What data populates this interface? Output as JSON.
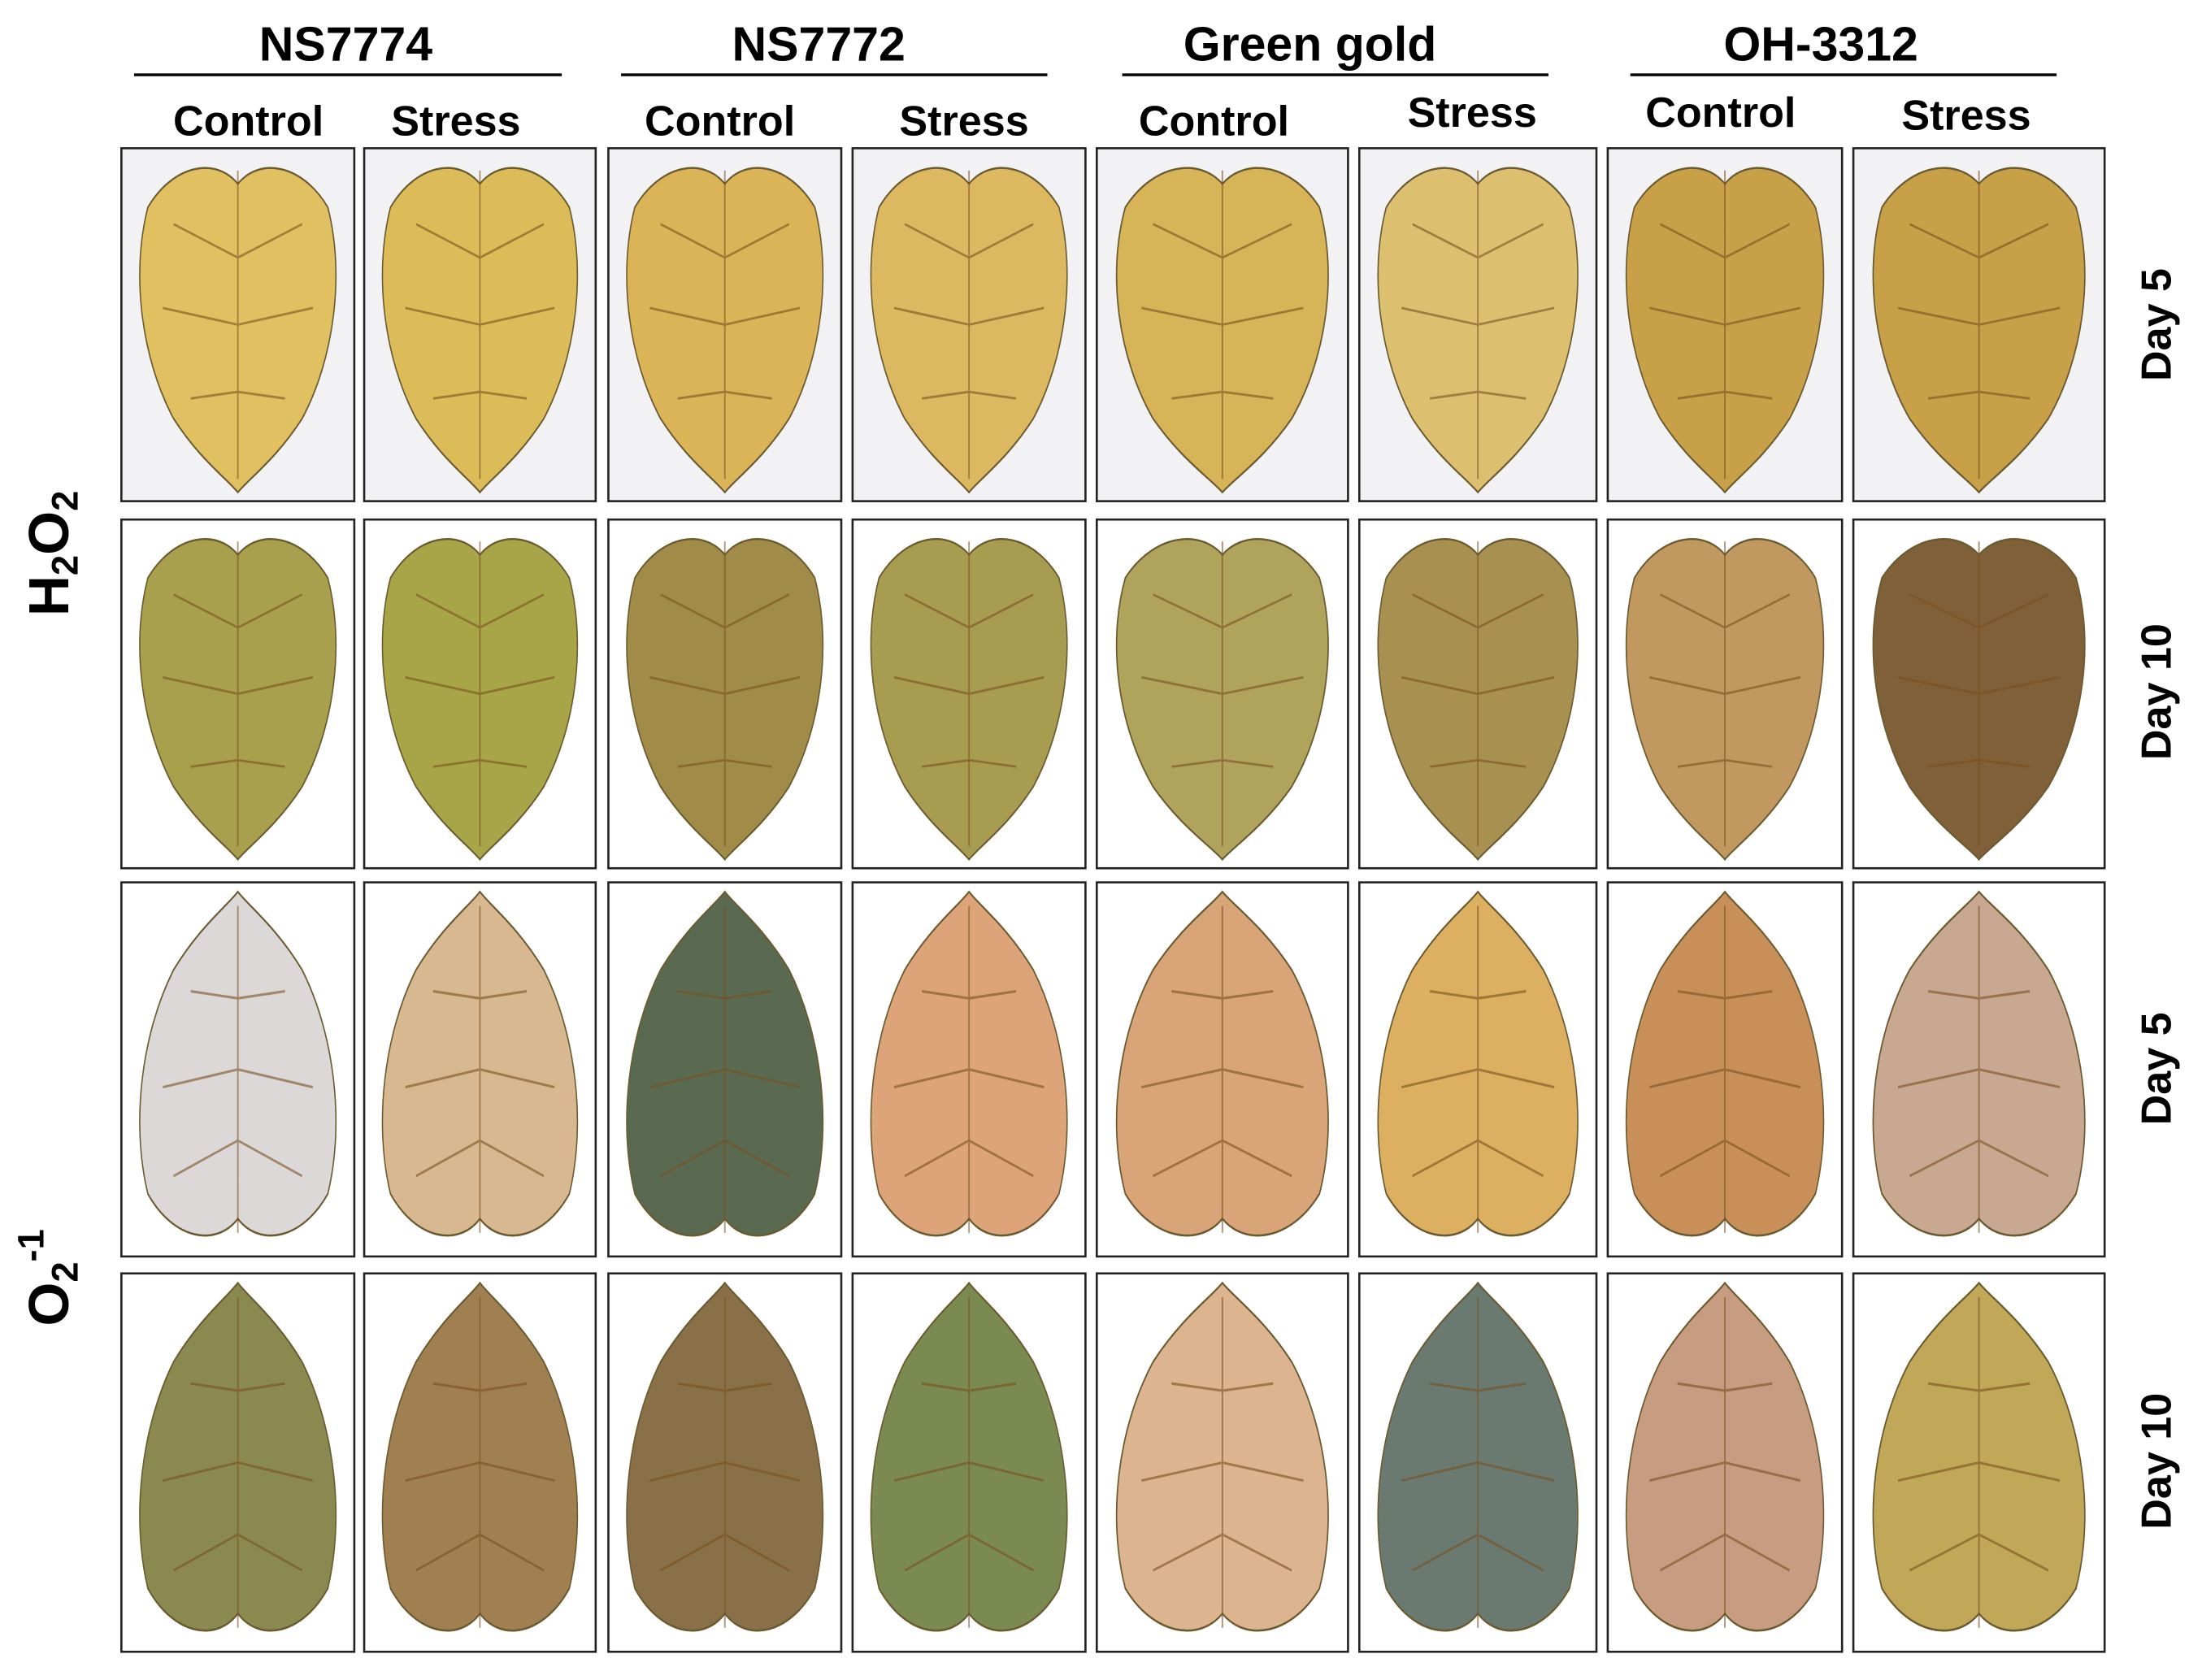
{
  "columns": [
    {
      "genotype": "NS7774",
      "conditions": [
        "Control",
        "Stress"
      ]
    },
    {
      "genotype": "NS7772",
      "conditions": [
        "Control",
        "Stress"
      ]
    },
    {
      "genotype": "Green gold",
      "conditions": [
        "Control",
        "Stress"
      ]
    },
    {
      "genotype": "OH-3312",
      "conditions": [
        "Control",
        "Stress"
      ]
    }
  ],
  "row_groups": [
    {
      "label_parts": [
        "H",
        "2",
        "O",
        "2"
      ],
      "rows": [
        "Day 5",
        "Day 10"
      ]
    },
    {
      "label_parts": [
        "O",
        "2",
        "-1"
      ],
      "rows": [
        "Day 5",
        "Day 10"
      ]
    }
  ]
}
